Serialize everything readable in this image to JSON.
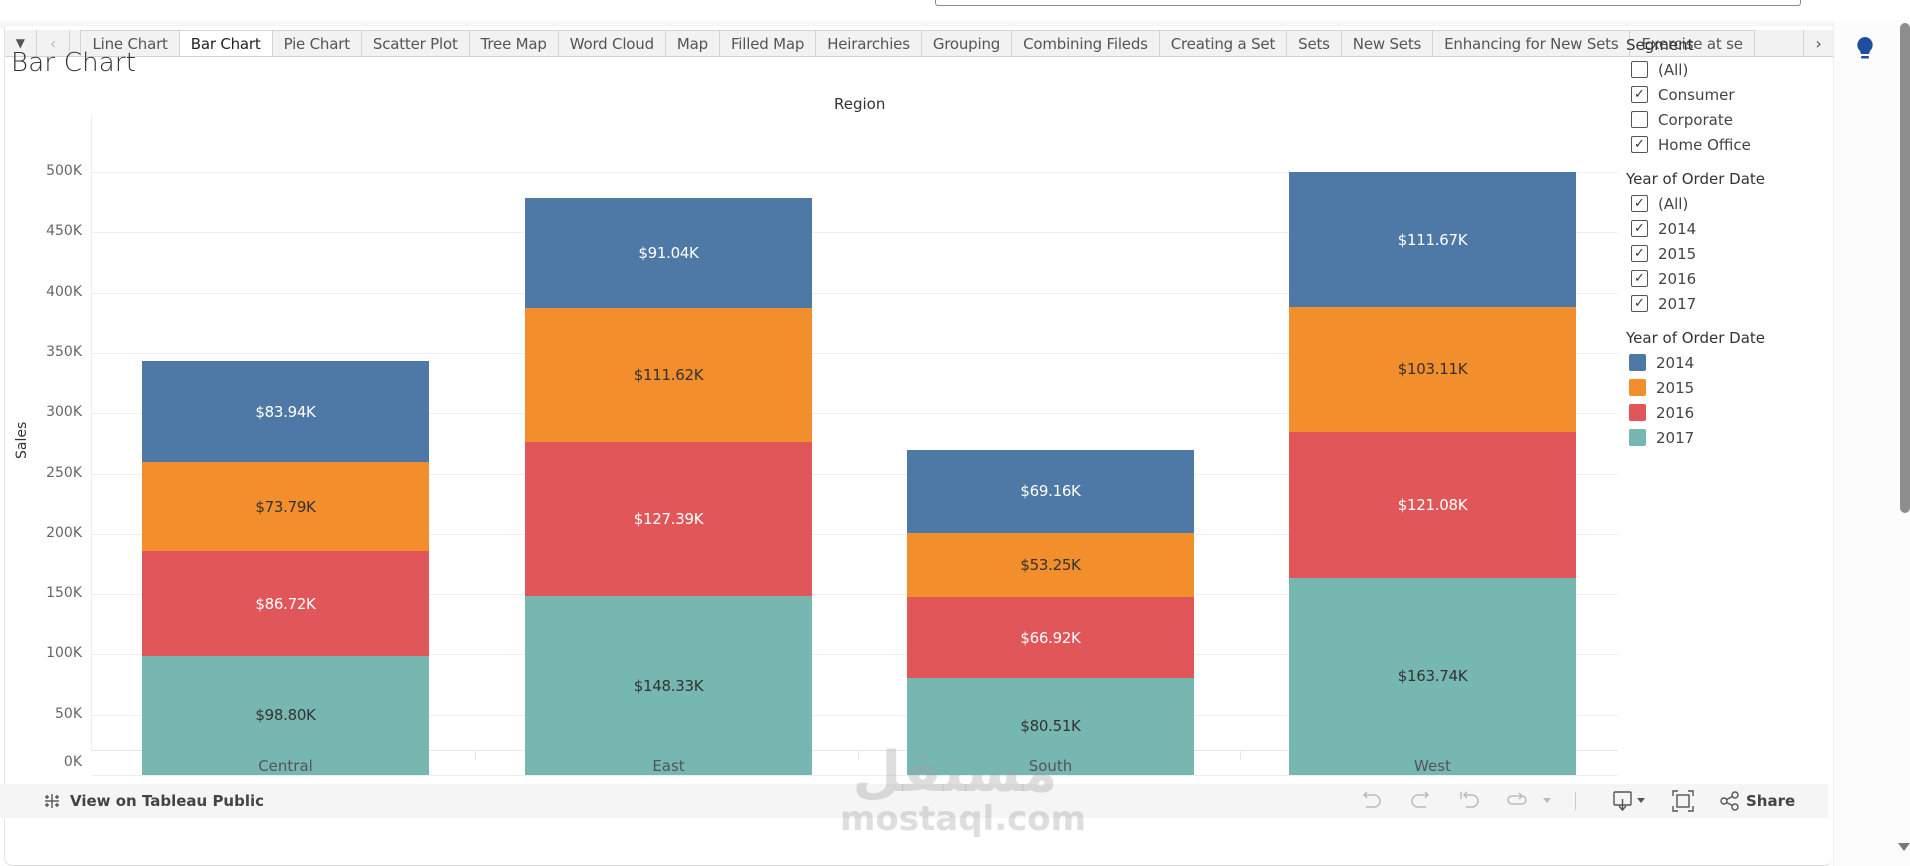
{
  "tabbar": {
    "tabs": [
      {
        "label": "Line Chart",
        "active": false
      },
      {
        "label": "Bar Chart",
        "active": true
      },
      {
        "label": "Pie Chart",
        "active": false
      },
      {
        "label": "Scatter Plot",
        "active": false
      },
      {
        "label": "Tree Map",
        "active": false
      },
      {
        "label": "Word Cloud",
        "active": false
      },
      {
        "label": "Map",
        "active": false
      },
      {
        "label": "Filled Map",
        "active": false
      },
      {
        "label": "Heirarchies",
        "active": false
      },
      {
        "label": "Grouping",
        "active": false
      },
      {
        "label": "Combining Fileds",
        "active": false
      },
      {
        "label": "Creating a Set",
        "active": false
      },
      {
        "label": "Sets",
        "active": false
      },
      {
        "label": "New Sets",
        "active": false
      },
      {
        "label": "Enhancing for New Sets",
        "active": false
      },
      {
        "label": "Exercise at se",
        "active": false
      }
    ],
    "menu_icon": "▼",
    "prev_icon": "‹",
    "next_icon": "›"
  },
  "sheet": {
    "title": "Bar Chart",
    "column_header": "Region",
    "y_axis_label": "Sales"
  },
  "chart_data": {
    "type": "bar",
    "stacked": true,
    "title": "Bar Chart",
    "xlabel": "Region",
    "ylabel": "Sales",
    "ylim": [
      0,
      500000
    ],
    "y_ticks": [
      "0K",
      "50K",
      "100K",
      "150K",
      "200K",
      "250K",
      "300K",
      "350K",
      "400K",
      "450K",
      "500K"
    ],
    "grid": true,
    "legend_position": "right",
    "categories": [
      "Central",
      "East",
      "South",
      "West"
    ],
    "series": [
      {
        "name": "2014",
        "color": "#4e79a7",
        "label_color": "#ffffff",
        "values": [
          83.94,
          91.04,
          69.16,
          111.67
        ],
        "labels": [
          "$83.94K",
          "$91.04K",
          "$69.16K",
          "$111.67K"
        ]
      },
      {
        "name": "2015",
        "color": "#f28e2b",
        "label_color": "#333333",
        "values": [
          73.79,
          111.62,
          53.25,
          103.11
        ],
        "labels": [
          "$73.79K",
          "$111.62K",
          "$53.25K",
          "$103.11K"
        ]
      },
      {
        "name": "2016",
        "color": "#e15759",
        "label_color": "#ffffff",
        "values": [
          86.72,
          127.39,
          66.92,
          121.08
        ],
        "labels": [
          "$86.72K",
          "$127.39K",
          "$66.92K",
          "$121.08K"
        ]
      },
      {
        "name": "2017",
        "color": "#76b7b2",
        "label_color": "#333333",
        "values": [
          98.8,
          148.33,
          80.51,
          163.74
        ],
        "labels": [
          "$98.80K",
          "$148.33K",
          "$80.51K",
          "$163.74K"
        ]
      }
    ],
    "units": "thousands USD"
  },
  "filters": {
    "segment": {
      "title": "Segment",
      "items": [
        {
          "label": "(All)",
          "checked": false
        },
        {
          "label": "Consumer",
          "checked": true
        },
        {
          "label": "Corporate",
          "checked": false
        },
        {
          "label": "Home Office",
          "checked": true
        }
      ]
    },
    "year": {
      "title": "Year of Order Date",
      "items": [
        {
          "label": "(All)",
          "checked": true
        },
        {
          "label": "2014",
          "checked": true
        },
        {
          "label": "2015",
          "checked": true
        },
        {
          "label": "2016",
          "checked": true
        },
        {
          "label": "2017",
          "checked": true
        }
      ]
    }
  },
  "legend": {
    "title": "Year of Order Date",
    "items": [
      {
        "label": "2014",
        "color": "#4e79a7"
      },
      {
        "label": "2015",
        "color": "#f28e2b"
      },
      {
        "label": "2016",
        "color": "#e15759"
      },
      {
        "label": "2017",
        "color": "#76b7b2"
      }
    ]
  },
  "footer": {
    "tableau_public_link": "View on Tableau Public",
    "share_label": "Share"
  },
  "watermark": {
    "arabic": "مستقل",
    "latin": "mostaql.com"
  },
  "colors": {
    "accent_bulb": "#1f4e9c"
  }
}
